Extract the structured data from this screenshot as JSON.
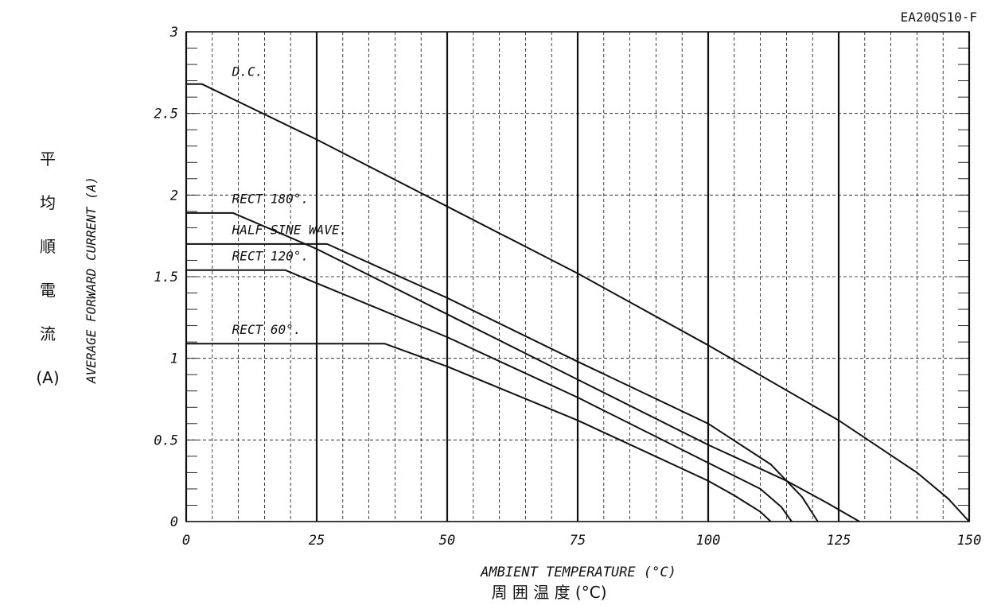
{
  "chart_data": {
    "type": "line",
    "code": "EA20QS10-F",
    "xlabel": "AMBIENT TEMPERATURE (°C)",
    "xlabel_jp": "周 囲 温 度  (°C)",
    "ylabel": "AVERAGE FORWARD CURRENT (A)",
    "ylabel_jp": [
      "平",
      "均",
      "順",
      "電",
      "流",
      "(A)"
    ],
    "xlim": [
      0,
      150
    ],
    "ylim": [
      0,
      3
    ],
    "x_ticks": [
      "0",
      "25",
      "50",
      "75",
      "100",
      "125",
      "150"
    ],
    "y_ticks": [
      "0",
      "0.5",
      "1",
      "1.5",
      "2",
      "2.5",
      "3"
    ],
    "grid": true,
    "series": [
      {
        "name": "D.C.",
        "points": [
          [
            0,
            2.68
          ],
          [
            3,
            2.68
          ],
          [
            25,
            2.34
          ],
          [
            50,
            1.93
          ],
          [
            75,
            1.52
          ],
          [
            100,
            1.08
          ],
          [
            125,
            0.62
          ],
          [
            140,
            0.3
          ],
          [
            146,
            0.14
          ],
          [
            150,
            0
          ]
        ]
      },
      {
        "name": "RECT 180°.",
        "points": [
          [
            0,
            1.89
          ],
          [
            9,
            1.89
          ],
          [
            25,
            1.67
          ],
          [
            50,
            1.27
          ],
          [
            75,
            0.87
          ],
          [
            100,
            0.47
          ],
          [
            115,
            0.25
          ],
          [
            123,
            0.11
          ],
          [
            129,
            0
          ]
        ]
      },
      {
        "name": "HALF SINE WAVE.",
        "points": [
          [
            0,
            1.7
          ],
          [
            27,
            1.7
          ],
          [
            50,
            1.37
          ],
          [
            75,
            0.98
          ],
          [
            100,
            0.6
          ],
          [
            112,
            0.35
          ],
          [
            118,
            0.15
          ],
          [
            121,
            0
          ]
        ]
      },
      {
        "name": "RECT 120°.",
        "points": [
          [
            0,
            1.54
          ],
          [
            19,
            1.54
          ],
          [
            25,
            1.46
          ],
          [
            50,
            1.13
          ],
          [
            75,
            0.76
          ],
          [
            100,
            0.36
          ],
          [
            110,
            0.2
          ],
          [
            114,
            0.09
          ],
          [
            116,
            0
          ]
        ]
      },
      {
        "name": "RECT 60°.",
        "points": [
          [
            0,
            1.09
          ],
          [
            38,
            1.09
          ],
          [
            50,
            0.95
          ],
          [
            75,
            0.62
          ],
          [
            100,
            0.25
          ],
          [
            105,
            0.16
          ],
          [
            110,
            0.06
          ],
          [
            112,
            0
          ]
        ]
      }
    ],
    "labels": [
      {
        "text": "D.C.",
        "x": 3,
        "y": 2.72
      },
      {
        "text": "RECT 180°.",
        "x": 3,
        "y": 1.94
      },
      {
        "text": "HALF SINE WAVE.",
        "x": 3,
        "y": 1.75
      },
      {
        "text": "RECT 120°.",
        "x": 3,
        "y": 1.59
      },
      {
        "text": "RECT 60°.",
        "x": 3,
        "y": 1.14
      }
    ]
  }
}
